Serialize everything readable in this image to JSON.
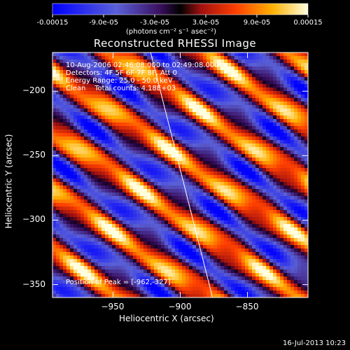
{
  "colorbar": {
    "tick_labels": [
      "-0.00015",
      "-9.0e-05",
      "-3.0e-05",
      "3.0e-05",
      "9.0e-05",
      "0.00015"
    ],
    "unit_label": "(photons cm⁻² s⁻¹ asec⁻²)",
    "range": [
      -0.00015,
      0.00015
    ]
  },
  "chart_data": {
    "type": "heatmap",
    "title": "Reconstructed RHESSI Image",
    "xlabel": "Heliocentric X (arcsec)",
    "ylabel": "Heliocentric Y (arcsec)",
    "xlim": [
      -995,
      -805
    ],
    "ylim": [
      -360,
      -170
    ],
    "x_ticks": [
      -950,
      -900,
      -850
    ],
    "y_ticks": [
      -200,
      -250,
      -300,
      -350
    ],
    "annotations": {
      "time_range": "10-Aug-2006 02:46:08.000 to 02:49:08.000",
      "detectors": "Detectors: 4F 5F 6F 7F 8F, Att 0",
      "energy": "Energy Range: 25.0 - 50.0 keV",
      "method": "Clean    Total counts: 4.18E+03",
      "peak": "Position of Peak = [-962,-327]"
    },
    "solar_limb_line": {
      "points": [
        [
          -922,
          -170
        ],
        [
          -876,
          -360
        ]
      ]
    },
    "stripe_pattern": {
      "description_for_render": "diagonal alternating positive/negative fringe pattern",
      "angle_deg": -35,
      "period_arcsec": 38,
      "peak_value": 0.00015
    }
  },
  "footer": {
    "timestamp": "16-Jul-2013 10:23"
  }
}
